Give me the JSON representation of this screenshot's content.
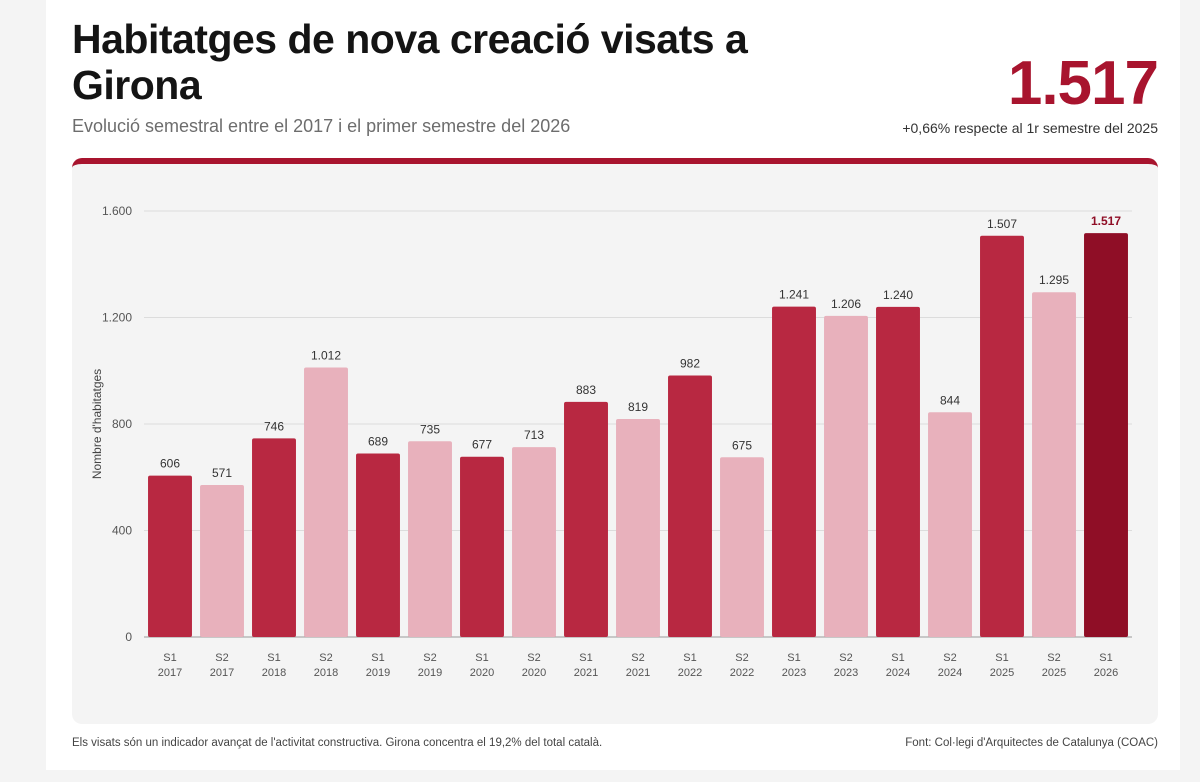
{
  "header": {
    "title": "Habitatges de nova creació visats a Girona",
    "subtitle": "Evolució semestral entre el 2017 i el primer semestre del 2026"
  },
  "kpi": {
    "value": "1.517",
    "note": "+0,66% respecte al 1r semestre del 2025"
  },
  "footer": {
    "note": "Els visats són un indicador avançat de l'activitat constructiva. Girona concentra el 19,2% del total català.",
    "source": "Font: Col·legi d'Arquitectes de Catalunya (COAC)"
  },
  "colors": {
    "s1": "#b82841",
    "s2": "#e8b1bc",
    "latest": "#8f0e26",
    "accent": "#a8142e"
  },
  "chart_data": {
    "type": "bar",
    "title": "",
    "xlabel": "",
    "ylabel": "Nombre d'habitatges",
    "ylim": [
      0,
      1600
    ],
    "yticks": [
      0,
      400,
      800,
      1200,
      1600
    ],
    "ytick_labels": [
      "0",
      "400",
      "800",
      "1.200",
      "1.600"
    ],
    "grid": true,
    "categories": [
      "S1 2017",
      "S2 2017",
      "S1 2018",
      "S2 2018",
      "S1 2019",
      "S2 2019",
      "S1 2020",
      "S2 2020",
      "S1 2021",
      "S2 2021",
      "S1 2022",
      "S2 2022",
      "S1 2023",
      "S2 2023",
      "S1 2024",
      "S2 2024",
      "S1 2025",
      "S2 2025",
      "S1 2026"
    ],
    "values": [
      606,
      571,
      746,
      1012,
      689,
      735,
      677,
      713,
      883,
      819,
      982,
      675,
      1241,
      1206,
      1240,
      844,
      1507,
      1295,
      1517
    ],
    "value_labels": [
      "606",
      "571",
      "746",
      "1.012",
      "689",
      "735",
      "677",
      "713",
      "883",
      "819",
      "982",
      "675",
      "1.241",
      "1.206",
      "1.240",
      "844",
      "1.507",
      "1.295",
      "1.517"
    ]
  }
}
